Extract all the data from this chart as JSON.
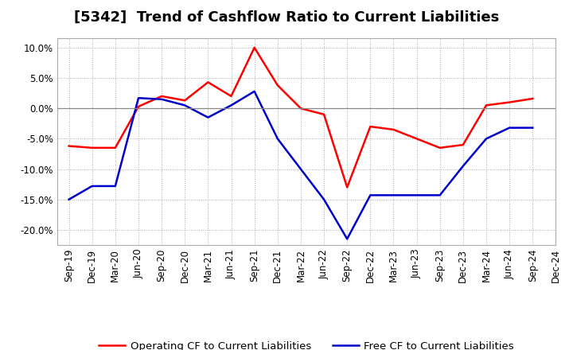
{
  "title": "[5342]  Trend of Cashflow Ratio to Current Liabilities",
  "x_labels": [
    "Sep-19",
    "Dec-19",
    "Mar-20",
    "Jun-20",
    "Sep-20",
    "Dec-20",
    "Mar-21",
    "Jun-21",
    "Sep-21",
    "Dec-21",
    "Mar-22",
    "Jun-22",
    "Sep-22",
    "Dec-22",
    "Mar-23",
    "Jun-23",
    "Sep-23",
    "Dec-23",
    "Mar-24",
    "Jun-24",
    "Sep-24",
    "Dec-24"
  ],
  "operating_cf": [
    -0.062,
    -0.065,
    -0.065,
    0.003,
    0.02,
    0.013,
    0.043,
    0.02,
    0.1,
    0.038,
    0.0,
    -0.01,
    -0.13,
    -0.03,
    -0.035,
    -0.05,
    -0.065,
    -0.06,
    0.005,
    0.01,
    0.016,
    null
  ],
  "free_cf": [
    -0.15,
    -0.128,
    -0.128,
    0.017,
    0.015,
    0.005,
    -0.015,
    0.005,
    0.028,
    -0.05,
    -0.1,
    -0.15,
    -0.215,
    -0.143,
    -0.143,
    -0.143,
    -0.143,
    -0.095,
    -0.05,
    -0.032,
    -0.032,
    null
  ],
  "operating_color": "#ff0000",
  "free_color": "#0000cc",
  "background_color": "#ffffff",
  "plot_bg_color": "#ffffff",
  "grid_color": "#aaaaaa",
  "ylim": [
    -0.225,
    0.115
  ],
  "yticks": [
    -0.2,
    -0.15,
    -0.1,
    -0.05,
    0.0,
    0.05,
    0.1
  ],
  "legend_op": "Operating CF to Current Liabilities",
  "legend_free": "Free CF to Current Liabilities",
  "title_fontsize": 13,
  "axis_fontsize": 8.5,
  "legend_fontsize": 9.5
}
